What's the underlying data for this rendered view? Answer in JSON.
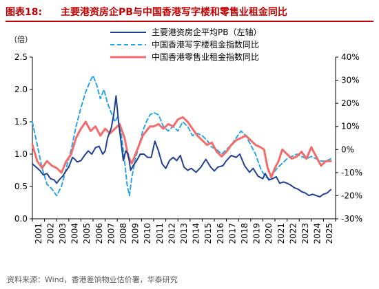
{
  "header": {
    "figure_label": "图表18:",
    "title": "主要港资房企PB与中国香港写字楼和零售业租金同比"
  },
  "source": "资料来源：Wind，香港差饷物业估价署，华泰研究",
  "colors": {
    "title": "#c00000",
    "pb_series": "#1f3f8f",
    "office_series": "#2aa5e8",
    "retail_series": "#f46b6b"
  },
  "chart_data": {
    "type": "line",
    "left_axis": {
      "unit_label": "（倍）",
      "ylim": [
        0,
        2.5
      ],
      "ticks": [
        "0.0",
        "0.5",
        "1.0",
        "1.5",
        "2.0",
        "2.5"
      ]
    },
    "right_axis": {
      "ylim": [
        -30,
        40
      ],
      "ticks": [
        "-30%",
        "-20%",
        "-10%",
        "0%",
        "10%",
        "20%",
        "30%",
        "40%"
      ]
    },
    "x_axis": {
      "range": [
        2001,
        2026
      ],
      "ticks": [
        "2001",
        "2002",
        "2003",
        "2004",
        "2005",
        "2006",
        "2007",
        "2008",
        "2009",
        "2010",
        "2011",
        "2012",
        "2013",
        "2014",
        "2015",
        "2016",
        "2017",
        "2018",
        "2019",
        "2020",
        "2021",
        "2022",
        "2023",
        "2024",
        "2025"
      ]
    },
    "grid": false,
    "legend_position": "top",
    "series": [
      {
        "name": "主要港资房企平均PB（左轴）",
        "axis": "left",
        "style": "solid",
        "x": [
          2001.0,
          2001.3,
          2001.6,
          2001.9,
          2002.2,
          2002.5,
          2002.8,
          2003.0,
          2003.2,
          2003.5,
          2003.7,
          2004.0,
          2004.3,
          2004.5,
          2004.7,
          2005.0,
          2005.3,
          2005.6,
          2005.9,
          2006.2,
          2006.5,
          2006.8,
          2007.0,
          2007.2,
          2007.5,
          2007.7,
          2007.9,
          2008.1,
          2008.3,
          2008.5,
          2008.7,
          2008.9,
          2009.1,
          2009.3,
          2009.6,
          2009.9,
          2010.2,
          2010.5,
          2010.8,
          2011.1,
          2011.4,
          2011.7,
          2012.0,
          2012.3,
          2012.6,
          2012.9,
          2013.2,
          2013.5,
          2013.8,
          2014.1,
          2014.5,
          2014.9,
          2015.3,
          2015.7,
          2016.0,
          2016.3,
          2016.7,
          2017.0,
          2017.4,
          2017.8,
          2018.1,
          2018.5,
          2018.9,
          2019.2,
          2019.6,
          2020.0,
          2020.2,
          2020.5,
          2020.8,
          2021.1,
          2021.4,
          2021.7,
          2022.0,
          2022.3,
          2022.6,
          2022.9,
          2023.2,
          2023.5,
          2023.8,
          2024.1,
          2024.4,
          2024.7,
          2025.0,
          2025.3,
          2025.6
        ],
        "values": [
          0.85,
          0.8,
          0.75,
          0.68,
          0.7,
          0.62,
          0.6,
          0.55,
          0.6,
          0.66,
          0.72,
          0.8,
          0.95,
          0.92,
          0.88,
          0.9,
          0.98,
          1.05,
          1.0,
          1.1,
          1.12,
          1.0,
          1.05,
          1.25,
          1.4,
          1.6,
          1.9,
          1.5,
          1.2,
          0.9,
          1.05,
          1.0,
          0.75,
          0.82,
          0.9,
          1.0,
          1.0,
          0.95,
          0.95,
          1.2,
          1.05,
          0.85,
          0.78,
          0.9,
          0.95,
          0.9,
          0.98,
          0.8,
          0.75,
          0.78,
          0.72,
          0.8,
          0.92,
          0.8,
          0.74,
          0.8,
          0.82,
          0.9,
          0.98,
          0.95,
          1.0,
          0.82,
          0.72,
          0.78,
          0.66,
          0.62,
          0.7,
          0.6,
          0.62,
          0.65,
          0.55,
          0.57,
          0.55,
          0.52,
          0.48,
          0.46,
          0.42,
          0.4,
          0.36,
          0.38,
          0.36,
          0.34,
          0.38,
          0.4,
          0.45
        ]
      },
      {
        "name": "中国香港写字楼租金指数同比",
        "axis": "right",
        "style": "dashed",
        "x": [
          2001.0,
          2001.4,
          2001.8,
          2002.2,
          2002.6,
          2003.0,
          2003.4,
          2003.8,
          2004.2,
          2004.6,
          2005.0,
          2005.4,
          2005.8,
          2006.0,
          2006.3,
          2006.6,
          2006.9,
          2007.2,
          2007.5,
          2007.8,
          2008.0,
          2008.3,
          2008.6,
          2008.8,
          2009.0,
          2009.2,
          2009.5,
          2009.8,
          2010.1,
          2010.4,
          2010.7,
          2011.0,
          2011.4,
          2011.8,
          2012.2,
          2012.6,
          2013.0,
          2013.4,
          2013.8,
          2014.2,
          2014.6,
          2015.0,
          2015.4,
          2015.8,
          2016.2,
          2016.6,
          2017.0,
          2017.4,
          2017.8,
          2018.2,
          2018.6,
          2019.0,
          2019.4,
          2019.8,
          2020.0,
          2020.3,
          2020.6,
          2020.9,
          2021.2,
          2021.6,
          2022.0,
          2022.4,
          2022.8,
          2023.2,
          2023.6,
          2024.0,
          2024.4,
          2024.8,
          2025.2,
          2025.6
        ],
        "values": [
          12,
          2,
          -8,
          -15,
          -17,
          -20,
          -16,
          -8,
          0,
          10,
          18,
          25,
          30,
          32,
          28,
          22,
          26,
          20,
          16,
          12,
          14,
          8,
          -5,
          -15,
          -20,
          -12,
          -4,
          2,
          8,
          12,
          15,
          16,
          15,
          10,
          8,
          10,
          8,
          12,
          10,
          6,
          7,
          6,
          4,
          1,
          0,
          -2,
          0,
          2,
          5,
          8,
          6,
          2,
          -2,
          -8,
          -10,
          -12,
          -13,
          -10,
          -8,
          -6,
          -4,
          -3,
          -2,
          -3,
          -4,
          -3,
          -4,
          -5,
          -5,
          -4
        ]
      },
      {
        "name": "中国香港零售业租金指数同比",
        "axis": "right",
        "style": "solid",
        "x": [
          2001.0,
          2001.4,
          2001.8,
          2002.2,
          2002.6,
          2003.0,
          2003.4,
          2003.8,
          2004.2,
          2004.6,
          2005.0,
          2005.4,
          2005.8,
          2006.2,
          2006.6,
          2007.0,
          2007.4,
          2007.8,
          2008.2,
          2008.6,
          2008.9,
          2009.2,
          2009.5,
          2009.8,
          2010.1,
          2010.4,
          2010.7,
          2011.0,
          2011.4,
          2011.8,
          2012.2,
          2012.6,
          2013.0,
          2013.4,
          2013.8,
          2014.2,
          2014.6,
          2015.0,
          2015.4,
          2015.8,
          2016.2,
          2016.6,
          2017.0,
          2017.4,
          2017.8,
          2018.2,
          2018.6,
          2019.0,
          2019.4,
          2019.8,
          2020.1,
          2020.4,
          2020.7,
          2021.0,
          2021.3,
          2021.6,
          2022.0,
          2022.4,
          2022.8,
          2023.2,
          2023.6,
          2024.0,
          2024.4,
          2024.8,
          2025.2,
          2025.6
        ],
        "values": [
          2,
          -5,
          -8,
          -5,
          -7,
          -8,
          -10,
          -5,
          -2,
          5,
          9,
          12,
          8,
          10,
          6,
          9,
          7,
          9,
          11,
          5,
          -3,
          -6,
          -2,
          2,
          6,
          8,
          10,
          10,
          11,
          9,
          11,
          10,
          13,
          14,
          12,
          9,
          6,
          4,
          2,
          3,
          -1,
          -3,
          -1,
          2,
          4,
          5,
          6,
          4,
          2,
          1,
          0,
          -8,
          -12,
          -8,
          -5,
          0,
          -2,
          -4,
          -3,
          -1,
          -4,
          1,
          -3,
          -7,
          -5,
          -5
        ]
      }
    ]
  }
}
